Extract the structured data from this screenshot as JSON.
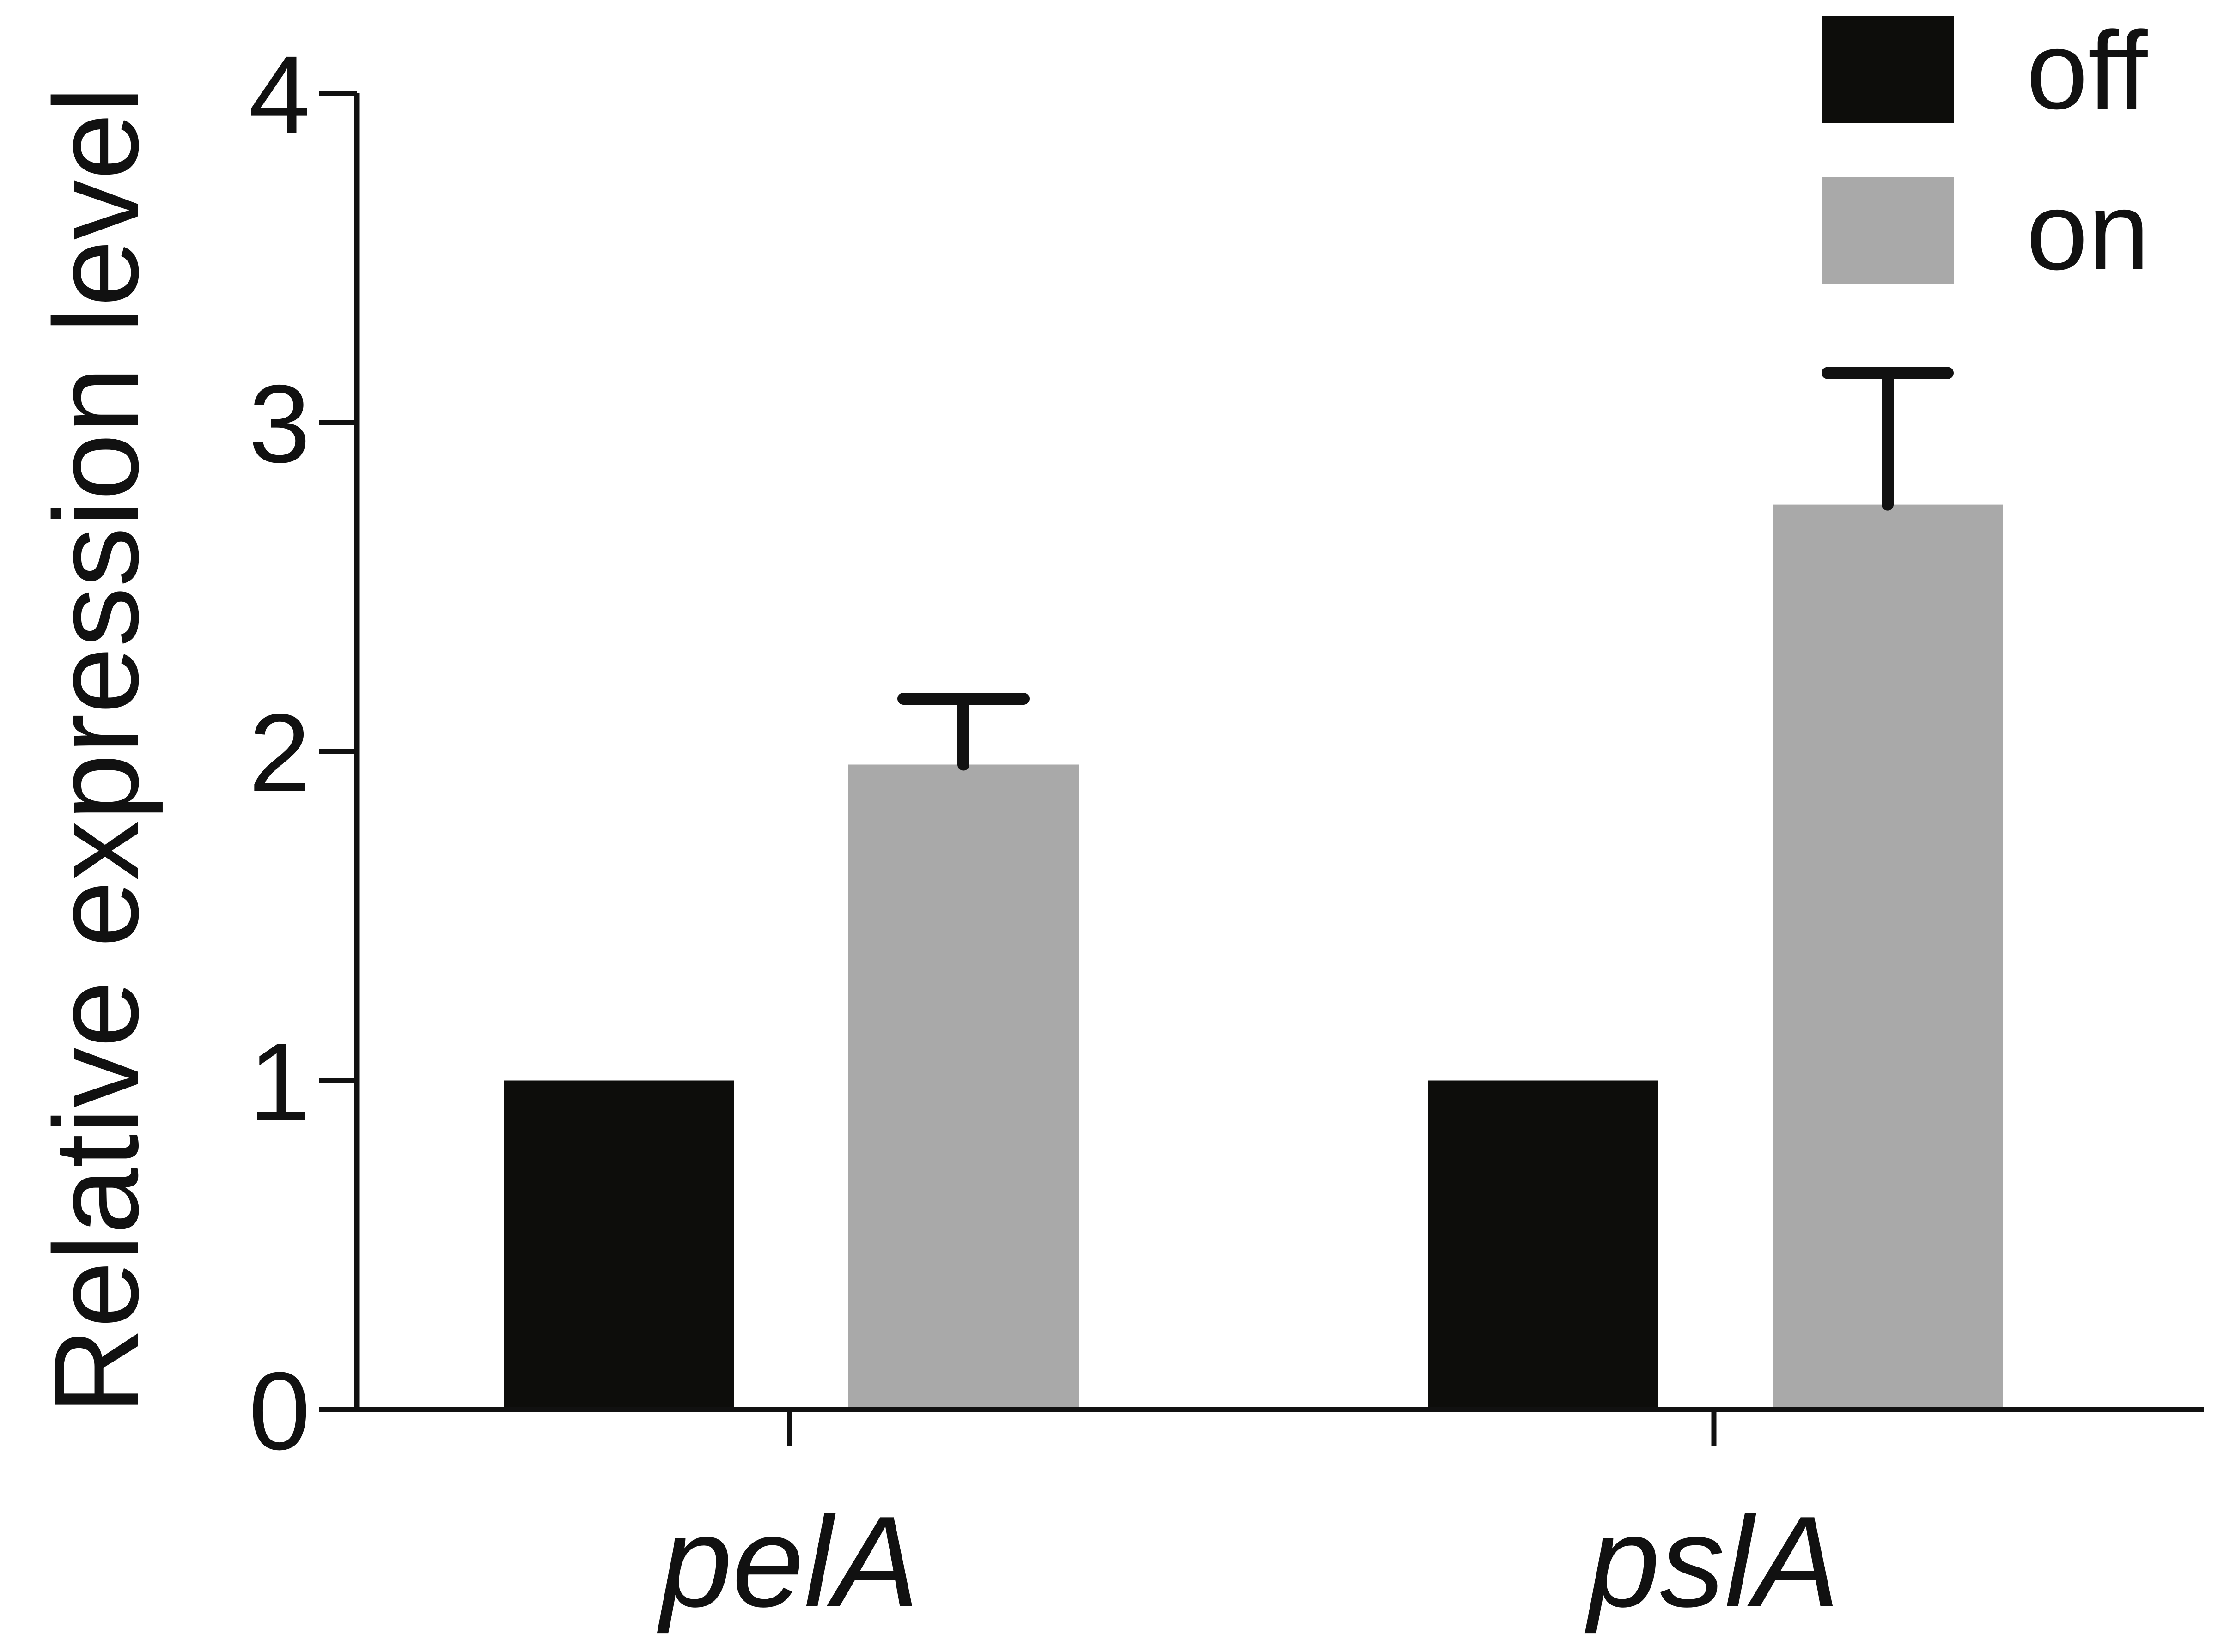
{
  "chart_data": {
    "type": "bar",
    "title": "",
    "xlabel": "",
    "ylabel": "Relative expression level",
    "categories": [
      "pelA",
      "pslA"
    ],
    "series": [
      {
        "name": "off",
        "values": [
          1,
          1
        ],
        "errors": [
          0,
          0
        ],
        "color": "#0d0d0b"
      },
      {
        "name": "on",
        "values": [
          1.96,
          2.75
        ],
        "errors": [
          0.2,
          0.4
        ],
        "color": "#a9a9a9"
      }
    ],
    "ylim": [
      0,
      4
    ],
    "yticks": [
      "0",
      "1",
      "2",
      "3",
      "4"
    ],
    "grid": false,
    "legend": "top-right",
    "error_bars": "upper only"
  }
}
